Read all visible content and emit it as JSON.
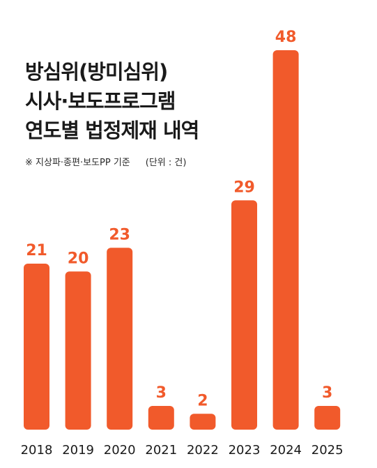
{
  "chart_data": {
    "type": "bar",
    "title_lines": [
      "방심위(방미심위)",
      "시사·보도프로그램",
      "연도별 법정제재 내역"
    ],
    "note": "※ 지상파·종편·보도PP 기준",
    "unit": "(단위 : 건)",
    "categories": [
      "2018",
      "2019",
      "2020",
      "2021",
      "2022",
      "2023",
      "2024",
      "2025"
    ],
    "values": [
      21,
      20,
      23,
      3,
      2,
      29,
      48,
      3
    ],
    "ylim": [
      0,
      48
    ],
    "grid": false,
    "bar_color": "#f15a2b",
    "label_color": "#f15a2b",
    "axis_label_color": "#1a1a1a"
  }
}
